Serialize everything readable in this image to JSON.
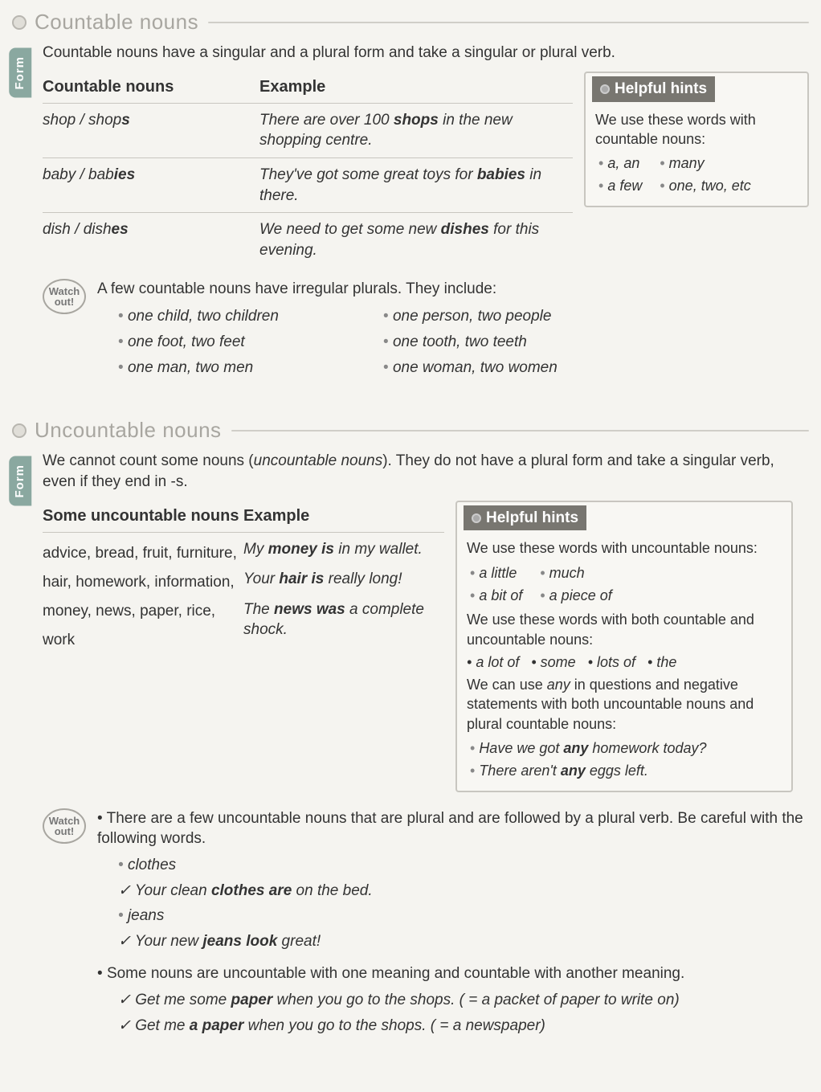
{
  "section1": {
    "title": "Countable nouns",
    "form_tab": "Form",
    "intro": "Countable nouns have a singular and a plural form and take a singular or plural verb.",
    "table": {
      "h1": "Countable nouns",
      "h2": "Example",
      "rows": [
        {
          "n_html": "shop / shop<b>s</b>",
          "e_html": "There are over 100 <b>shops</b> in the new shopping centre."
        },
        {
          "n_html": "baby / bab<b>ies</b>",
          "e_html": "They've got some great toys for <b>babies</b> in there."
        },
        {
          "n_html": "dish / dish<b>es</b>",
          "e_html": "We need to get some new <b>dishes</b> for this evening."
        }
      ]
    },
    "hints": {
      "title": "Helpful hints",
      "intro": "We use these words with countable nouns:",
      "items_left": [
        "a, an",
        "a few"
      ],
      "items_right": [
        "many",
        "one, two, etc"
      ]
    },
    "watch": {
      "label_top": "Watch",
      "label_bot": "out!",
      "intro": "A few countable nouns have irregular plurals. They include:",
      "col1": [
        "one child, two children",
        "one foot, two feet",
        "one man, two men"
      ],
      "col2": [
        "one person, two people",
        "one tooth, two teeth",
        "one woman, two women"
      ]
    }
  },
  "section2": {
    "title": "Uncountable nouns",
    "form_tab": "Form",
    "intro_html": "We cannot count some nouns (<i>uncountable nouns</i>). They do not have a plural form and take a singular verb, even if they end in -s.",
    "table": {
      "h1": "Some uncountable nouns",
      "h2": "Example",
      "nouns": "advice, bread, fruit, furniture, hair, homework, information, money, news, paper, rice, work",
      "examples": [
        "My <b>money is</b> in my wallet.",
        "Your <b>hair is</b> really long!",
        "The <b>news was</b> a complete shock."
      ]
    },
    "hints": {
      "title": "Helpful hints",
      "p1": "We use these words with uncountable nouns:",
      "row1_left": [
        "a little",
        "a bit of"
      ],
      "row1_right": [
        "much",
        "a piece of"
      ],
      "p2": "We use these words with both countable and uncountable nouns:",
      "row2": [
        "a lot of",
        "some",
        "lots of",
        "the"
      ],
      "p3_html": "We can use <i>any</i> in questions and negative statements with both uncountable nouns and plural countable nouns:",
      "ex": [
        "Have we got <b>any</b> homework today?",
        "There aren't <b>any</b> eggs left."
      ]
    },
    "watch": {
      "label_top": "Watch",
      "label_bot": "out!",
      "g1_intro": "There are a few uncountable nouns that are plural and are followed by a plural verb. Be careful with the following words.",
      "g1_items": [
        {
          "word": "clothes",
          "ex_html": "Your clean <b>clothes are</b> on the bed."
        },
        {
          "word": "jeans",
          "ex_html": "Your new <b>jeans look</b> great!"
        }
      ],
      "g2_intro": "Some nouns are uncountable with one meaning and countable with another meaning.",
      "g2_items": [
        "Get me some <b>paper</b> when you go to the shops. ( = a packet of paper to write on)",
        "Get me <b>a paper</b> when you go to the shops. ( = a newspaper)"
      ]
    }
  }
}
